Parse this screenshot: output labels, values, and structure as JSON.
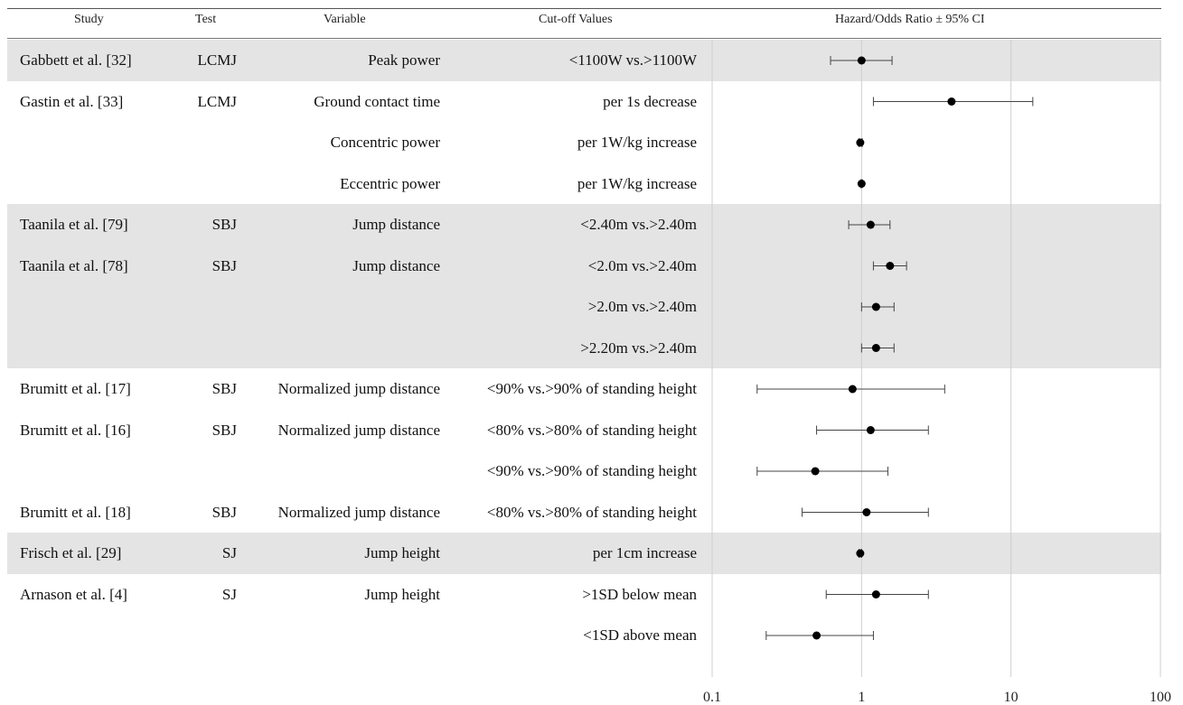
{
  "columns": {
    "study": "Study",
    "test": "Test",
    "variable": "Variable",
    "cutoff": "Cut-off Values",
    "ratio": "Hazard/Odds Ratio ± 95% CI"
  },
  "groups": [
    {
      "start": 0,
      "end": 0,
      "shaded": true
    },
    {
      "start": 1,
      "end": 3,
      "shaded": false
    },
    {
      "start": 4,
      "end": 7,
      "shaded": true
    },
    {
      "start": 8,
      "end": 11,
      "shaded": false
    },
    {
      "start": 12,
      "end": 12,
      "shaded": true
    },
    {
      "start": 13,
      "end": 14,
      "shaded": false
    }
  ],
  "rows": [
    {
      "study": "Gabbett et al. [32]",
      "test": "LCMJ",
      "variable": "Peak power",
      "cutoff": "<1100W vs.>1100W"
    },
    {
      "study": "Gastin et al. [33]",
      "test": "LCMJ",
      "variable": "Ground contact time",
      "cutoff": "per 1s decrease"
    },
    {
      "study": "",
      "test": "",
      "variable": "Concentric power",
      "cutoff": "per 1W/kg increase"
    },
    {
      "study": "",
      "test": "",
      "variable": "Eccentric power",
      "cutoff": "per 1W/kg increase"
    },
    {
      "study": "Taanila et al. [79]",
      "test": "SBJ",
      "variable": "Jump distance",
      "cutoff": "<2.40m vs.>2.40m"
    },
    {
      "study": "Taanila et al. [78]",
      "test": "SBJ",
      "variable": "Jump distance",
      "cutoff": "<2.0m vs.>2.40m"
    },
    {
      "study": "",
      "test": "",
      "variable": "",
      "cutoff": ">2.0m vs.>2.40m"
    },
    {
      "study": "",
      "test": "",
      "variable": "",
      "cutoff": ">2.20m vs.>2.40m"
    },
    {
      "study": "Brumitt et al. [17]",
      "test": "SBJ",
      "variable": "Normalized jump distance",
      "cutoff": "<90% vs.>90% of standing height"
    },
    {
      "study": "Brumitt et al. [16]",
      "test": "SBJ",
      "variable": "Normalized jump distance",
      "cutoff": "<80% vs.>80% of standing height"
    },
    {
      "study": "",
      "test": "",
      "variable": "",
      "cutoff": "<90% vs.>90% of standing height"
    },
    {
      "study": "Brumitt et al. [18]",
      "test": "SBJ",
      "variable": "Normalized jump distance",
      "cutoff": "<80% vs.>80% of standing height"
    },
    {
      "study": "Frisch et al. [29]",
      "test": "SJ",
      "variable": "Jump height",
      "cutoff": "per 1cm  increase"
    },
    {
      "study": "Arnason et al. [4]",
      "test": "SJ",
      "variable": "Jump height",
      "cutoff": ">1SD below mean"
    },
    {
      "study": "",
      "test": "",
      "variable": "",
      "cutoff": "<1SD above mean"
    }
  ],
  "chart_data": {
    "type": "scatter",
    "xscale": "log",
    "xlim": [
      0.1,
      100
    ],
    "xticks": [
      0.1,
      1,
      10,
      100
    ],
    "tick_labels": [
      "0.1",
      "1",
      "10",
      "100"
    ],
    "grid": "vertical",
    "title": "Hazard/Odds Ratio ± 95% CI",
    "points": [
      {
        "est": 1.0,
        "lo": 0.62,
        "hi": 1.6
      },
      {
        "est": 4.0,
        "lo": 1.2,
        "hi": 14.0
      },
      {
        "est": 0.98,
        "lo": 0.96,
        "hi": 1.01
      },
      {
        "est": 1.0,
        "lo": 0.99,
        "hi": 1.01
      },
      {
        "est": 1.15,
        "lo": 0.82,
        "hi": 1.55
      },
      {
        "est": 1.55,
        "lo": 1.2,
        "hi": 2.0
      },
      {
        "est": 1.25,
        "lo": 1.0,
        "hi": 1.65
      },
      {
        "est": 1.25,
        "lo": 1.0,
        "hi": 1.65
      },
      {
        "est": 0.87,
        "lo": 0.2,
        "hi": 3.6
      },
      {
        "est": 1.15,
        "lo": 0.5,
        "hi": 2.8
      },
      {
        "est": 0.49,
        "lo": 0.2,
        "hi": 1.5
      },
      {
        "est": 1.08,
        "lo": 0.4,
        "hi": 2.8
      },
      {
        "est": 0.98,
        "lo": 0.96,
        "hi": 1.0
      },
      {
        "est": 1.25,
        "lo": 0.58,
        "hi": 2.8
      },
      {
        "est": 0.5,
        "lo": 0.23,
        "hi": 1.2
      }
    ],
    "colors": {
      "band": "#e4e4e4",
      "marker": "#000000",
      "ci": "#444444",
      "grid": "#cfcfcf"
    }
  }
}
